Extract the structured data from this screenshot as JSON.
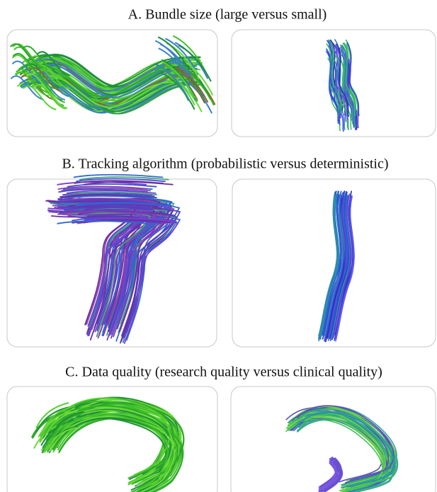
{
  "sections": [
    {
      "title": "A. Bundle size (large versus small)"
    },
    {
      "title": "B. Tracking algorithm (probabilistic versus deterministic)"
    },
    {
      "title": "C. Data quality (research quality versus clinical quality)"
    }
  ]
}
